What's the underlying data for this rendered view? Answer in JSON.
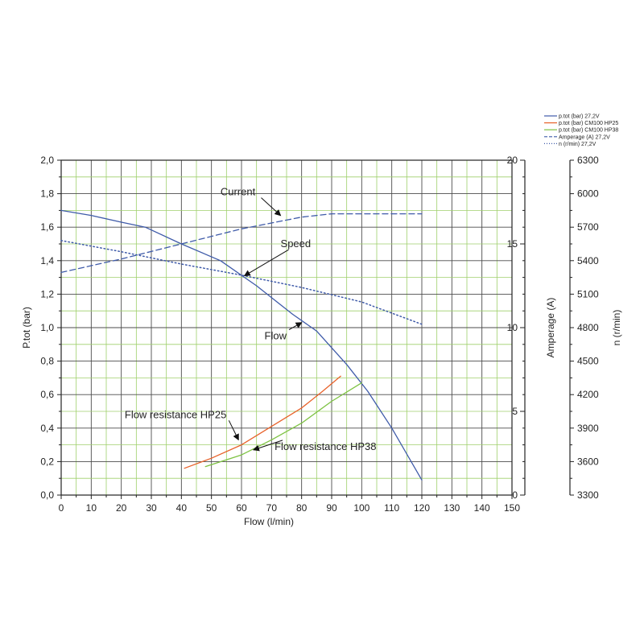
{
  "chart_data": {
    "type": "line",
    "x_axis": {
      "label": "Flow (l/min)",
      "range": [
        0,
        150
      ],
      "ticks": [
        0,
        10,
        20,
        30,
        40,
        50,
        60,
        70,
        80,
        90,
        100,
        110,
        120,
        130,
        140,
        150
      ]
    },
    "y_axis_left": {
      "label": "P.tot (bar)",
      "range": [
        0,
        2.0
      ],
      "ticks": [
        "0,0",
        "0,2",
        "0,4",
        "0,6",
        "0,8",
        "1,0",
        "1,2",
        "1,4",
        "1,6",
        "1,8",
        "2,0"
      ]
    },
    "y_axis_right_1": {
      "label": "Amperage (A)",
      "range": [
        0,
        20
      ],
      "ticks": [
        "0",
        "5",
        "10",
        "15",
        "20"
      ]
    },
    "y_axis_right_2": {
      "label": "n (r/min)",
      "range": [
        3300,
        6300
      ],
      "ticks": [
        "3300",
        "3600",
        "3900",
        "4200",
        "4500",
        "4800",
        "5100",
        "5400",
        "5700",
        "6000",
        "6300"
      ]
    },
    "grid": true,
    "legend_position": "top-right",
    "series": [
      {
        "name": "p.tot (bar) 27,2V",
        "axis": "left",
        "color": "#3f5ba9",
        "style": "solid",
        "x": [
          0,
          10,
          20,
          28,
          40,
          53,
          65,
          77,
          85,
          95,
          102,
          110,
          120
        ],
        "y": [
          1.7,
          1.67,
          1.63,
          1.6,
          1.5,
          1.4,
          1.25,
          1.08,
          0.98,
          0.78,
          0.62,
          0.4,
          0.09
        ]
      },
      {
        "name": "p.tot (bar) CM100 HP25",
        "axis": "left",
        "color": "#e8622a",
        "style": "solid",
        "x": [
          41,
          50,
          60,
          70,
          80,
          87,
          93
        ],
        "y": [
          0.16,
          0.22,
          0.3,
          0.41,
          0.52,
          0.62,
          0.71
        ]
      },
      {
        "name": "p.tot (bar) CM100 HP38",
        "axis": "left",
        "color": "#7dc242",
        "style": "solid",
        "x": [
          48,
          60,
          70,
          80,
          90,
          100
        ],
        "y": [
          0.17,
          0.24,
          0.33,
          0.43,
          0.56,
          0.67
        ]
      },
      {
        "name": "Amperage (A) 27,2V",
        "axis": "right_1",
        "color": "#3f5ba9",
        "style": "dashed",
        "x": [
          0,
          20,
          40,
          60,
          80,
          90,
          100,
          120
        ],
        "y": [
          13.3,
          14.1,
          15.0,
          15.9,
          16.6,
          16.8,
          16.8,
          16.8
        ]
      },
      {
        "name": "n (r/min) 27,2V",
        "axis": "right_2",
        "color": "#3f5ba9",
        "style": "dotted",
        "x": [
          0,
          20,
          40,
          60,
          80,
          100,
          120
        ],
        "y": [
          5580,
          5480,
          5370,
          5270,
          5160,
          5030,
          4830
        ]
      }
    ],
    "annotations": [
      {
        "text": "Current",
        "x": 53,
        "y": 1.79,
        "anchor": "start",
        "arrow_to": [
          73,
          1.67
        ]
      },
      {
        "text": "Speed",
        "x": 73,
        "y": 1.48,
        "anchor": "start",
        "arrow_to": [
          61,
          1.31
        ]
      },
      {
        "text": "Flow",
        "x": 75,
        "y": 0.93,
        "anchor": "end",
        "arrow_to": [
          80,
          1.03
        ]
      },
      {
        "text": "Flow resistance HP25",
        "x": 55,
        "y": 0.46,
        "anchor": "end",
        "arrow_to": [
          59,
          0.33
        ]
      },
      {
        "text": "Flow resistance HP38",
        "x": 71,
        "y": 0.27,
        "anchor": "start",
        "arrow_to": [
          64,
          0.27
        ]
      }
    ]
  }
}
